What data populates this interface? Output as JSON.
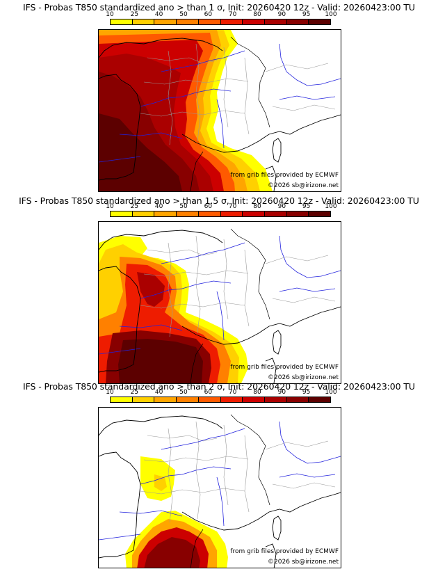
{
  "panels": [
    {
      "title": "IFS - Probas T850  standardized ano > than 1 σ, Init: 20260420 12z - Valid: 20260423:00 TU",
      "threshold_sigma": 1,
      "credit": "from grib files provided by ECMWF",
      "copyright": "©2026 sb@irizone.net"
    },
    {
      "title": "IFS - Probas T850  standardized ano > than 1.5 σ, Init: 20260420 12z - Valid: 20260423:00 TU",
      "threshold_sigma": 1.5,
      "credit": "from grib files provided by ECMWF",
      "copyright": "©2026 sb@irizone.net"
    },
    {
      "title": "IFS - Probas T850  standardized ano > than 2 σ, Init: 20260420 12z - Valid: 20260423:00 TU",
      "threshold_sigma": 2,
      "credit": "from grib files provided by ECMWF",
      "copyright": "©2026 sb@irizone.net"
    }
  ],
  "legend": {
    "labels": [
      "10",
      "25",
      "40",
      "50",
      "60",
      "70",
      "80",
      "90",
      "95",
      "100"
    ],
    "colors": [
      "#ffff00",
      "#ffd000",
      "#ffa500",
      "#ff8000",
      "#ff5a00",
      "#ee1c00",
      "#cc0000",
      "#aa0000",
      "#880000",
      "#5c0000"
    ]
  },
  "map_colors": {
    "coast": "#000000",
    "rivers": "#2222dd",
    "departments": "#999999"
  }
}
